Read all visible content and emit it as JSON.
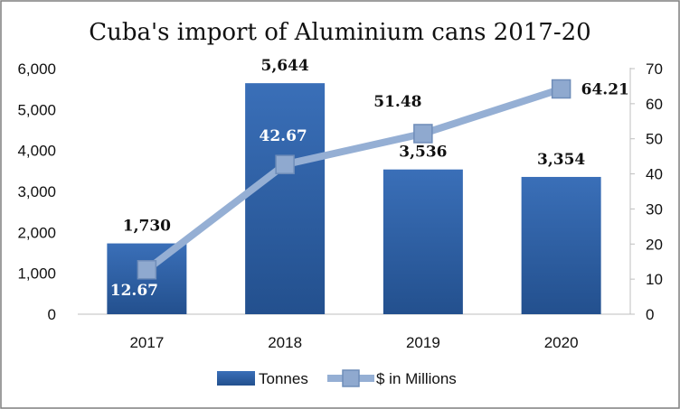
{
  "chart_data": {
    "type": "bar",
    "title": "Cuba's import of Aluminium cans 2017-20",
    "categories": [
      "2017",
      "2018",
      "2019",
      "2020"
    ],
    "series": [
      {
        "name": "Tonnes",
        "type": "bar",
        "axis": "left",
        "values": [
          1730,
          5644,
          3536,
          3354
        ],
        "labels": [
          "1,730",
          "5,644",
          "3,536",
          "3,354"
        ],
        "color": "#2E5E9E"
      },
      {
        "name": "$ in Millions",
        "type": "line",
        "axis": "right",
        "values": [
          12.67,
          42.67,
          51.48,
          64.21
        ],
        "labels": [
          "12.67",
          "42.67",
          "51.48",
          "64.21"
        ],
        "color": "#95AFD4"
      }
    ],
    "y_left": {
      "min": 0,
      "max": 6000,
      "step": 1000,
      "tick_labels": [
        "0",
        "1,000",
        "2,000",
        "3,000",
        "4,000",
        "5,000",
        "6,000"
      ]
    },
    "y_right": {
      "min": 0,
      "max": 70,
      "step": 10,
      "tick_labels": [
        "0",
        "10",
        "20",
        "30",
        "40",
        "50",
        "60",
        "70"
      ]
    },
    "grid": false,
    "legend_position": "bottom"
  }
}
